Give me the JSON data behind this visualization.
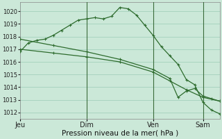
{
  "background_color": "#cbe8d8",
  "grid_color": "#a8d4c0",
  "line_color": "#2d6b2d",
  "xlabel": "Pression niveau de la mer( hPa )",
  "ylim": [
    1011.5,
    1020.7
  ],
  "yticks": [
    1012,
    1013,
    1014,
    1015,
    1016,
    1017,
    1018,
    1019,
    1020
  ],
  "xtick_labels": [
    "Jeu",
    "Dim",
    "Ven",
    "Sam"
  ],
  "xtick_positions": [
    0,
    8,
    16,
    22
  ],
  "xlim": [
    0,
    24
  ],
  "series1_x": [
    0,
    1,
    2,
    3,
    4,
    5,
    6,
    7,
    8,
    9,
    10,
    11,
    12,
    13,
    14,
    15,
    16,
    17,
    18,
    19,
    20,
    21,
    22,
    23,
    24
  ],
  "series1_y": [
    1016.8,
    1017.5,
    1017.7,
    1017.8,
    1018.1,
    1018.5,
    1018.9,
    1019.3,
    1019.4,
    1019.5,
    1019.4,
    1019.6,
    1020.3,
    1020.2,
    1019.7,
    1018.9,
    1018.1,
    1017.2,
    1016.5,
    1015.8,
    1014.6,
    1014.2,
    1012.8,
    1012.2,
    1011.9
  ],
  "series2_x": [
    0,
    4,
    8,
    12,
    16,
    18,
    19,
    20,
    21,
    22,
    23,
    24
  ],
  "series2_y": [
    1017.8,
    1017.3,
    1016.8,
    1016.2,
    1015.4,
    1014.7,
    1013.2,
    1013.7,
    1013.9,
    1013.3,
    1013.1,
    1012.9
  ],
  "series3_x": [
    0,
    4,
    8,
    12,
    16,
    18,
    20,
    22,
    24
  ],
  "series3_y": [
    1017.0,
    1016.7,
    1016.4,
    1016.0,
    1015.2,
    1014.5,
    1013.8,
    1013.2,
    1012.9
  ],
  "vline_positions": [
    8,
    16,
    22
  ],
  "marker_size": 2.5,
  "line_width": 0.9,
  "ytick_fontsize": 6,
  "xtick_fontsize": 7,
  "xlabel_fontsize": 7.5
}
